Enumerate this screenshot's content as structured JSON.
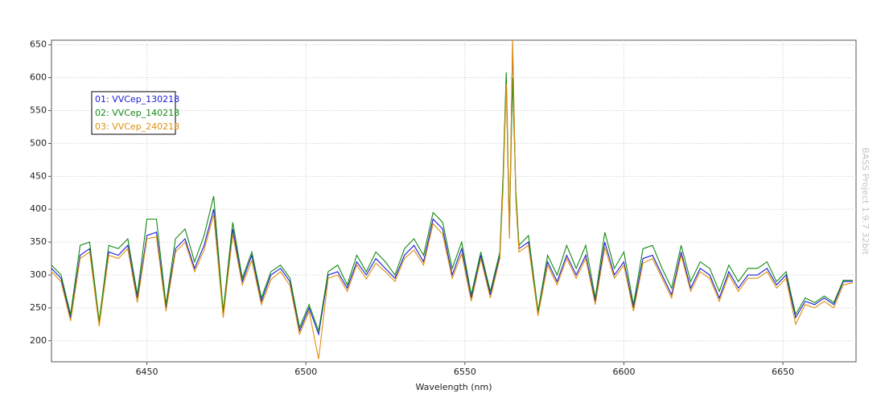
{
  "chart_data": {
    "type": "line",
    "x_label": "Wavelength (nm)",
    "watermark": "BASS Project 1.9.7 32bit",
    "legend": "upper left",
    "grid": true,
    "xlim": [
      6420,
      6673
    ],
    "xticks": [
      6450,
      6500,
      6550,
      6600,
      6650
    ],
    "ylim": [
      168,
      657
    ],
    "yticks": [
      200,
      250,
      300,
      350,
      400,
      450,
      500,
      550,
      600,
      650
    ],
    "x": [
      6420,
      6423,
      6426,
      6429,
      6432,
      6435,
      6438,
      6441,
      6444,
      6447,
      6450,
      6453,
      6456,
      6459,
      6462,
      6465,
      6468,
      6471,
      6474,
      6477,
      6480,
      6483,
      6486,
      6489,
      6492,
      6495,
      6498,
      6501,
      6504,
      6507,
      6510,
      6513,
      6516,
      6519,
      6522,
      6525,
      6528,
      6531,
      6534,
      6537,
      6540,
      6543,
      6546,
      6549,
      6552,
      6555,
      6558,
      6561,
      6562,
      6563,
      6564,
      6565,
      6566,
      6567,
      6570,
      6573,
      6576,
      6579,
      6582,
      6585,
      6588,
      6591,
      6594,
      6597,
      6600,
      6603,
      6606,
      6609,
      6612,
      6615,
      6618,
      6621,
      6624,
      6627,
      6630,
      6633,
      6636,
      6639,
      6642,
      6645,
      6648,
      6651,
      6654,
      6657,
      6660,
      6663,
      6666,
      6669,
      6672
    ],
    "series": [
      {
        "name": "01: VVCep_130218",
        "color": "#1a1ad8",
        "values": [
          310,
          295,
          235,
          330,
          340,
          225,
          335,
          330,
          345,
          265,
          360,
          365,
          250,
          340,
          355,
          310,
          345,
          400,
          240,
          370,
          290,
          330,
          260,
          300,
          310,
          290,
          215,
          250,
          210,
          300,
          305,
          280,
          320,
          300,
          325,
          310,
          295,
          330,
          345,
          320,
          385,
          370,
          300,
          340,
          265,
          330,
          270,
          330,
          440,
          600,
          360,
          650,
          420,
          340,
          350,
          240,
          320,
          290,
          330,
          300,
          330,
          260,
          350,
          300,
          320,
          250,
          325,
          330,
          300,
          270,
          335,
          280,
          310,
          300,
          265,
          305,
          280,
          300,
          300,
          310,
          285,
          300,
          235,
          260,
          255,
          265,
          255,
          290,
          290
        ]
      },
      {
        "name": "02: VVCep_140218",
        "color": "#108a10",
        "values": [
          315,
          300,
          240,
          345,
          350,
          230,
          345,
          340,
          355,
          270,
          385,
          385,
          255,
          355,
          370,
          320,
          360,
          420,
          245,
          380,
          295,
          335,
          265,
          305,
          315,
          295,
          220,
          255,
          215,
          305,
          315,
          285,
          330,
          305,
          335,
          320,
          300,
          340,
          355,
          330,
          395,
          380,
          310,
          350,
          270,
          335,
          275,
          335,
          450,
          608,
          370,
          600,
          430,
          345,
          360,
          245,
          330,
          300,
          345,
          310,
          345,
          265,
          365,
          310,
          335,
          255,
          340,
          345,
          310,
          280,
          345,
          290,
          320,
          310,
          275,
          315,
          290,
          310,
          310,
          320,
          290,
          305,
          240,
          265,
          258,
          268,
          258,
          292,
          292
        ]
      },
      {
        "name": "03: VVCep_240218",
        "color": "#e0900a",
        "values": [
          305,
          290,
          230,
          325,
          335,
          222,
          330,
          325,
          340,
          258,
          355,
          358,
          245,
          335,
          350,
          305,
          338,
          392,
          235,
          362,
          285,
          322,
          255,
          293,
          305,
          284,
          210,
          245,
          172,
          295,
          300,
          275,
          315,
          294,
          318,
          305,
          290,
          325,
          338,
          315,
          378,
          362,
          295,
          332,
          260,
          325,
          265,
          325,
          430,
          590,
          355,
          660,
          415,
          335,
          345,
          238,
          315,
          285,
          325,
          295,
          325,
          255,
          342,
          295,
          315,
          245,
          318,
          325,
          295,
          265,
          330,
          275,
          305,
          295,
          260,
          300,
          275,
          295,
          295,
          305,
          280,
          295,
          225,
          255,
          250,
          260,
          250,
          285,
          288
        ]
      }
    ]
  }
}
